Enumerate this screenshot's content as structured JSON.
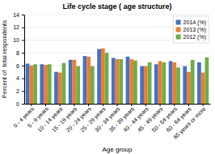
{
  "chart_data": {
    "type": "bar",
    "title": "Life cycle stage ( age structure)",
    "xlabel": "Age group",
    "ylabel": "Percent of  total respondents",
    "categories": [
      "0 - 4 years",
      "5 - 9 years",
      "10 - 14 years",
      "15 - 19 years",
      "20 - 24 years",
      "25 - 29 years",
      "30 - 34 years",
      "35 - 39 years",
      "40 - 44 years",
      "45 - 49 years",
      "50 - 54 years",
      "60 - 64 years",
      "65 years or more"
    ],
    "series": [
      {
        "name": "2014 (%)",
        "color": "#4472C4",
        "values": [
          6.3,
          6.2,
          5.0,
          6.9,
          7.5,
          8.6,
          7.2,
          7.4,
          5.9,
          6.2,
          6.7,
          5.9,
          6.5
        ]
      },
      {
        "name": "2013 (%)",
        "color": "#ED7D31",
        "values": [
          6.0,
          6.1,
          4.9,
          6.9,
          7.4,
          8.7,
          7.0,
          7.0,
          5.9,
          6.7,
          6.5,
          5.0,
          4.9
        ]
      },
      {
        "name": "2012 (%)",
        "color": "#70AD47",
        "values": [
          6.2,
          6.2,
          6.4,
          5.9,
          5.9,
          8.0,
          7.0,
          6.8,
          6.5,
          6.5,
          5.7,
          6.9,
          7.3
        ]
      }
    ],
    "ylim": [
      0,
      14
    ],
    "yticks": [
      0,
      2,
      4,
      6,
      8,
      10,
      12,
      14
    ],
    "grid": true,
    "legend": "upper right"
  }
}
